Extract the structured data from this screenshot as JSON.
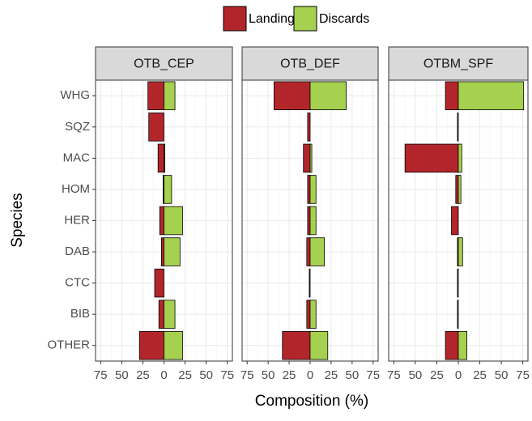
{
  "chart_data": {
    "type": "bar",
    "orientation": "horizontal",
    "xlabel": "Composition (%)",
    "ylabel": "Species",
    "categories": [
      "WHG",
      "SQZ",
      "MAC",
      "HOM",
      "HER",
      "DAB",
      "CTC",
      "BIB",
      "OTHER"
    ],
    "legend": [
      {
        "name": "Landings",
        "color": "#b2262b"
      },
      {
        "name": "Discards",
        "color": "#a6d04f"
      }
    ],
    "xlim": [
      -81,
      81
    ],
    "xticks": [
      {
        "value": -75,
        "label": "75"
      },
      {
        "value": -50,
        "label": "50"
      },
      {
        "value": -25,
        "label": "25"
      },
      0,
      25,
      50,
      75
    ],
    "grid": true,
    "facets": [
      {
        "title": "OTB_CEP",
        "series": [
          {
            "values": [
              -19,
              -18,
              -7,
              -1,
              -5,
              -3,
              -11,
              -6,
              -29
            ]
          },
          {
            "values": [
              13,
              0,
              1,
              9,
              22,
              19,
              0,
              13,
              22
            ]
          }
        ]
      },
      {
        "title": "OTB_DEF",
        "series": [
          {
            "values": [
              -43,
              -3,
              -8,
              -3,
              -3,
              -4,
              -1,
              -4,
              -33
            ]
          },
          {
            "values": [
              43,
              0,
              2,
              7,
              7,
              17,
              0,
              7,
              21
            ]
          }
        ]
      },
      {
        "title": "OTBM_SPF",
        "series": [
          {
            "values": [
              -15,
              -1,
              -62,
              -3,
              -8,
              -1,
              -1,
              -1,
              -15
            ]
          },
          {
            "values": [
              76,
              0,
              4,
              3,
              0,
              5,
              0,
              0,
              10
            ]
          }
        ]
      }
    ]
  }
}
